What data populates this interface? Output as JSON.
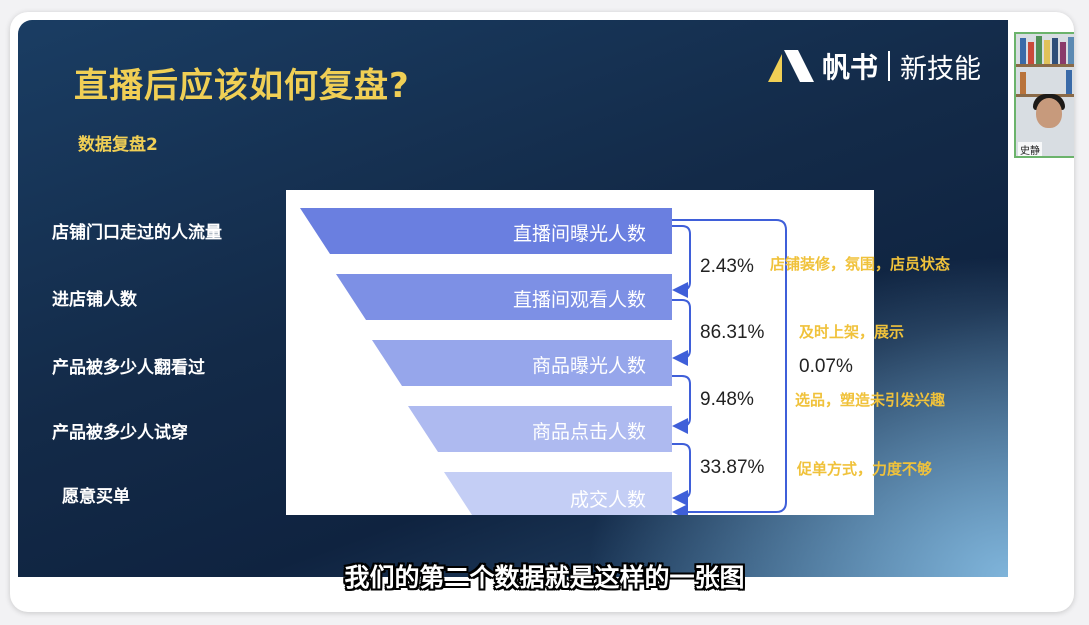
{
  "slide": {
    "title": "直播后应该如何复盘?",
    "subtitle": "数据复盘2",
    "brand": {
      "name": "帆书",
      "sub": "新技能",
      "icon": "fanshu-logo-icon"
    },
    "left_labels": [
      "店铺门口走过的人流量",
      "进店铺人数",
      "产品被多少人翻看过",
      "产品被多少人试穿",
      "愿意买单"
    ],
    "funnel": {
      "stages": [
        "直播间曝光人数",
        "直播间观看人数",
        "商品曝光人数",
        "商品点击人数",
        "成交人数"
      ],
      "conversion_rates": [
        "2.43%",
        "86.31%",
        "9.48%",
        "33.87%"
      ],
      "overall_rate": "0.07%",
      "colors": [
        "#6a7fe0",
        "#7d90e5",
        "#96a6eb",
        "#aebaf0",
        "#c4cef5"
      ]
    },
    "annotations": [
      "店铺装修，氛围，店员状态",
      "及时上架，展示",
      "选品，塑造未引发兴趣",
      "促单方式，力度不够"
    ]
  },
  "caption": "我们的第二个数据就是这样的一张图",
  "participant": {
    "name": "史静"
  }
}
